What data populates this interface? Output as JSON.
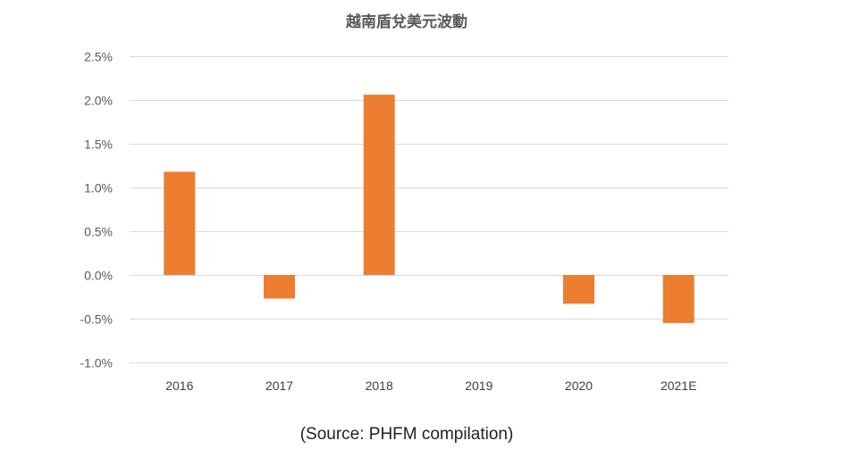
{
  "chart_data": {
    "type": "bar",
    "title": "越南盾兌美元波動",
    "categories": [
      "2016",
      "2017",
      "2018",
      "2019",
      "2020",
      "2021E"
    ],
    "series": [
      {
        "values": [
          1.18,
          -0.27,
          2.06,
          0.0,
          -0.33,
          -0.55
        ],
        "color": "#ED7D31"
      }
    ],
    "ylim": [
      -1.0,
      2.5
    ],
    "yticks": [
      2.5,
      2.0,
      1.5,
      1.0,
      0.5,
      0.0,
      -0.5,
      -1.0
    ],
    "ytick_labels": [
      "2.5%",
      "2.0%",
      "1.5%",
      "1.0%",
      "0.5%",
      "0.0%",
      "-0.5%",
      "-1.0%"
    ],
    "grid": true,
    "legend": "none",
    "xlabel": "",
    "ylabel": ""
  },
  "source_note": "(Source: PHFM compilation)",
  "colors": {
    "bar": "#ED7D31",
    "grid": "#D9D9D9",
    "text": "#595959"
  }
}
